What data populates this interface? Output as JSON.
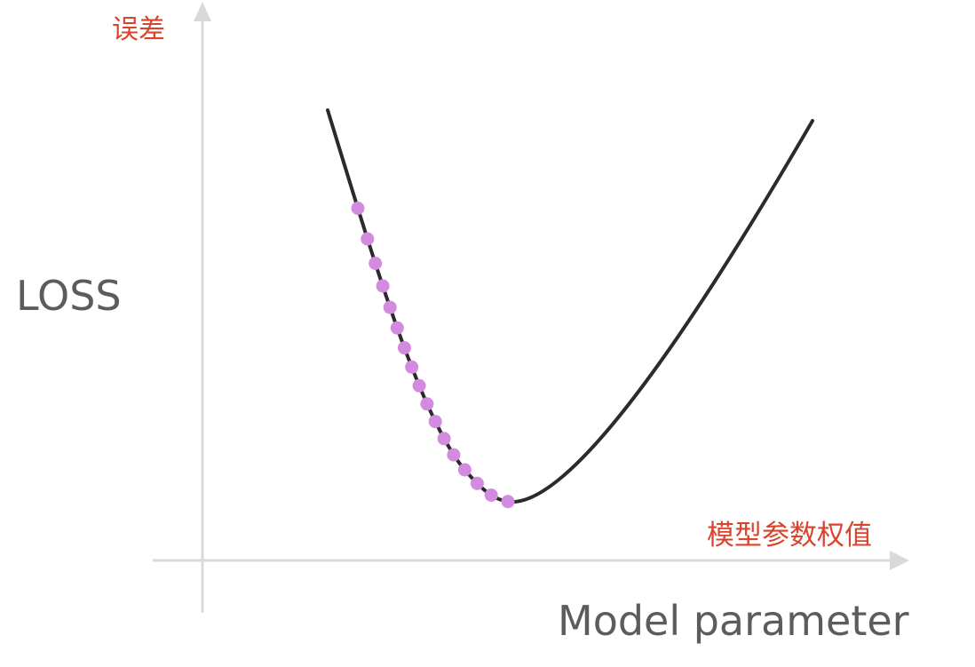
{
  "labels": {
    "y_axis_cn": "误差",
    "y_axis_en": "LOSS",
    "x_axis_cn": "模型参数权值",
    "x_axis_en": "Model parameter"
  },
  "colors": {
    "axis": "#d9d9d9",
    "curve": "#2b2b2b",
    "points": "#d38be0",
    "annotation": "#d9442c",
    "axis_label": "#5c5c5c"
  },
  "descent_point_count": 17
}
